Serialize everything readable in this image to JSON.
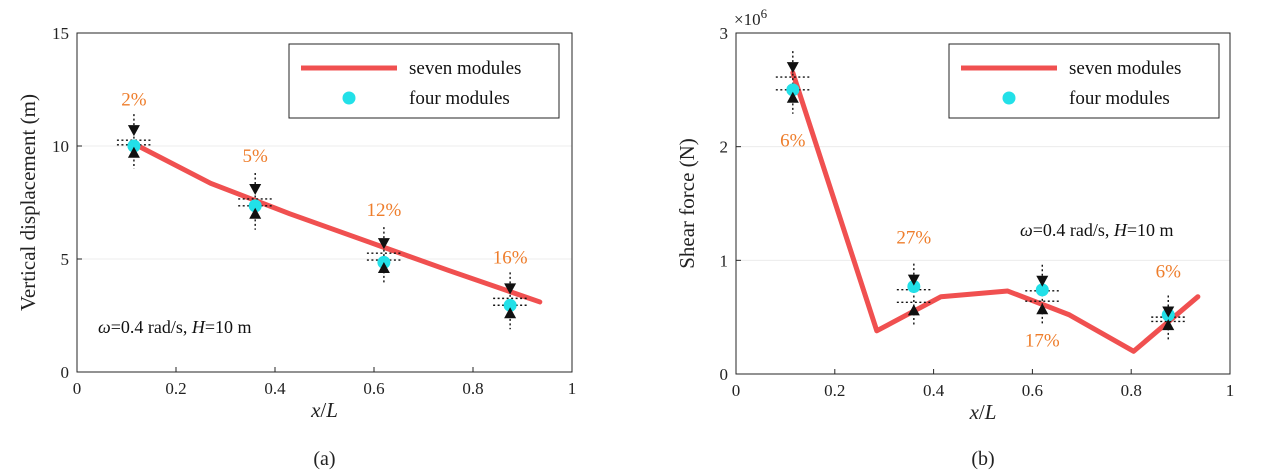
{
  "chart_data": [
    {
      "type": "line",
      "panel_label": "(a)",
      "xlabel": "x/L",
      "ylabel": "Vertical displacement (m)",
      "xlim": [
        0,
        1
      ],
      "ylim": [
        0,
        15
      ],
      "xticks": [
        0,
        0.2,
        0.4,
        0.6,
        0.8,
        1
      ],
      "xtick_labels": [
        "0",
        "0.2",
        "0.4",
        "0.6",
        "0.8",
        "1"
      ],
      "yticks": [
        0,
        5,
        10,
        15
      ],
      "ytick_labels": [
        "0",
        "5",
        "10",
        "15"
      ],
      "grid": true,
      "legend_position": "top-right",
      "series": [
        {
          "name": "seven modules",
          "kind": "line",
          "color": "#f05050",
          "x": [
            0.115,
            0.27,
            0.43,
            0.59,
            0.75,
            0.935
          ],
          "y": [
            10.1,
            8.35,
            7.0,
            5.75,
            4.5,
            3.1
          ]
        },
        {
          "name": "four modules",
          "kind": "marker",
          "color": "#22e0e8",
          "x": [
            0.115,
            0.36,
            0.62,
            0.875
          ],
          "y": [
            10.0,
            7.35,
            4.85,
            2.95
          ],
          "upper": [
            10.7,
            8.1,
            5.7,
            3.7
          ],
          "lower": [
            9.7,
            7.0,
            4.6,
            2.6
          ]
        }
      ],
      "annotations": [
        {
          "text": "2%",
          "x": 0.115,
          "y": 11.8
        },
        {
          "text": "5%",
          "x": 0.36,
          "y": 9.3
        },
        {
          "text": "12%",
          "x": 0.62,
          "y": 6.9
        },
        {
          "text": "16%",
          "x": 0.875,
          "y": 4.8
        }
      ],
      "note": {
        "omega": "ω",
        "mid": "=0.4 rad/s, ",
        "H": "H",
        "end": "=10 m"
      }
    },
    {
      "type": "line",
      "panel_label": "(b)",
      "xlabel": "x/L",
      "ylabel": "Shear force (N)",
      "y_multiplier_base": "×10",
      "y_multiplier_exp": "6",
      "xlim": [
        0,
        1
      ],
      "ylim": [
        0,
        3
      ],
      "xticks": [
        0,
        0.2,
        0.4,
        0.6,
        0.8,
        1
      ],
      "xtick_labels": [
        "0",
        "0.2",
        "0.4",
        "0.6",
        "0.8",
        "1"
      ],
      "yticks": [
        0,
        1,
        2,
        3
      ],
      "ytick_labels": [
        "0",
        "1",
        "2",
        "3"
      ],
      "grid": true,
      "legend_position": "top-right",
      "series": [
        {
          "name": "seven modules",
          "kind": "line",
          "color": "#f05050",
          "x": [
            0.115,
            0.285,
            0.415,
            0.55,
            0.675,
            0.805,
            0.935
          ],
          "y": [
            2.65,
            0.38,
            0.68,
            0.73,
            0.52,
            0.2,
            0.68
          ]
        },
        {
          "name": "four modules",
          "kind": "marker",
          "color": "#22e0e8",
          "x": [
            0.115,
            0.36,
            0.62,
            0.875
          ],
          "y": [
            2.5,
            0.77,
            0.74,
            0.52
          ],
          "upper": [
            2.7,
            0.83,
            0.82,
            0.55
          ],
          "lower": [
            2.43,
            0.56,
            0.57,
            0.43
          ]
        }
      ],
      "annotations": [
        {
          "text": "6%",
          "x": 0.115,
          "y": 2.0
        },
        {
          "text": "27%",
          "x": 0.36,
          "y": 1.15
        },
        {
          "text": "17%",
          "x": 0.62,
          "y": 0.24
        },
        {
          "text": "6%",
          "x": 0.875,
          "y": 0.85
        }
      ],
      "note": {
        "omega": "ω",
        "mid": "=0.4 rad/s, ",
        "H": "H",
        "end": "=10 m"
      }
    }
  ]
}
